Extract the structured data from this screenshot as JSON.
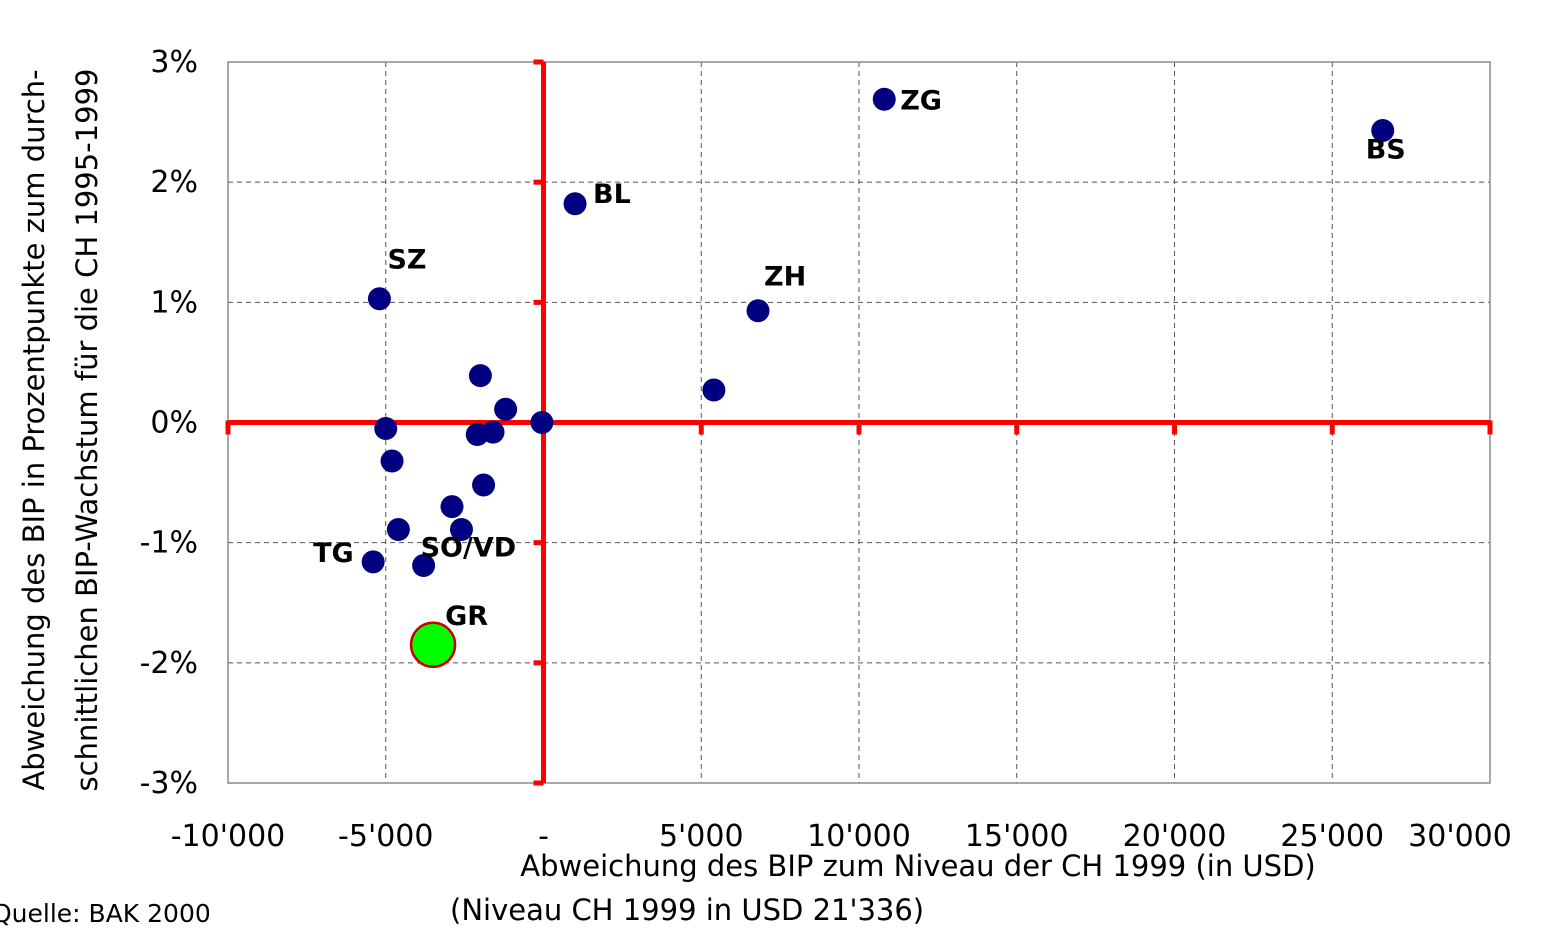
{
  "chart_data": {
    "type": "scatter",
    "xlabel": "Abweichung des BIP zum Niveau der CH 1999 (in USD)",
    "xlabel_note": "(Niveau CH 1999 in USD 21'336)",
    "ylabel_line1": "Abweichung des BIP in Prozentpunkte zum durch-",
    "ylabel_line2": "schnittlichen  BIP-Wachstum für die  CH 1995-1999",
    "source": "Quelle: BAK 2000",
    "xlim": [
      -10000,
      30000
    ],
    "ylim": [
      -3,
      3
    ],
    "x_ticks": [
      -10000,
      -5000,
      0,
      5000,
      10000,
      15000,
      20000,
      25000,
      30000
    ],
    "x_tick_labels": [
      "-10'000",
      "-5'000",
      "-",
      "5'000",
      "10'000",
      "15'000",
      "20'000",
      "25'000",
      "30'000"
    ],
    "y_ticks": [
      3,
      2,
      1,
      0,
      -1,
      -2,
      -3
    ],
    "y_tick_labels": [
      "3%",
      "2%",
      "1%",
      "0%",
      "-1%",
      "-2%",
      "-3%"
    ],
    "grid": true,
    "colors": {
      "point": "#000080",
      "highlight": "#00ff00",
      "highlight_border": "#cc0000",
      "axes": "#ff0000",
      "grid": "#555555"
    },
    "points": [
      {
        "x": 26600,
        "y": 2.43,
        "label": "BS"
      },
      {
        "x": 10800,
        "y": 2.69,
        "label": "ZG"
      },
      {
        "x": 1000,
        "y": 1.82,
        "label": "BL"
      },
      {
        "x": 6800,
        "y": 0.93,
        "label": "ZH"
      },
      {
        "x": -5200,
        "y": 1.03,
        "label": "SZ"
      },
      {
        "x": 5400,
        "y": 0.27,
        "label": ""
      },
      {
        "x": -2000,
        "y": 0.39,
        "label": ""
      },
      {
        "x": -1200,
        "y": 0.11,
        "label": ""
      },
      {
        "x": -50,
        "y": 0.0,
        "label": ""
      },
      {
        "x": -5000,
        "y": -0.05,
        "label": ""
      },
      {
        "x": -1600,
        "y": -0.08,
        "label": ""
      },
      {
        "x": -2100,
        "y": -0.1,
        "label": ""
      },
      {
        "x": -4800,
        "y": -0.32,
        "label": ""
      },
      {
        "x": -1900,
        "y": -0.52,
        "label": ""
      },
      {
        "x": -2900,
        "y": -0.7,
        "label": ""
      },
      {
        "x": -2600,
        "y": -0.89,
        "label": ""
      },
      {
        "x": -4600,
        "y": -0.89,
        "label": ""
      },
      {
        "x": -5400,
        "y": -1.16,
        "label": "TG"
      },
      {
        "x": -3800,
        "y": -1.19,
        "label": "SO/VD"
      },
      {
        "x": -3500,
        "y": -1.85,
        "label": "GR",
        "highlight": true
      }
    ]
  }
}
